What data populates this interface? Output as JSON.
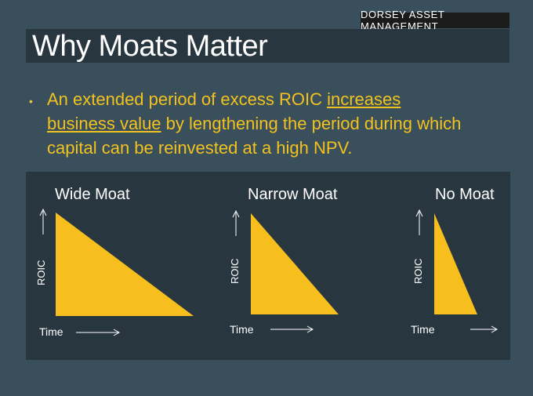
{
  "brand": "DORSEY ASSET MANAGEMENT",
  "title": "Why Moats Matter",
  "bullet": {
    "symbol": "•",
    "part1": "An extended period of excess ROIC ",
    "underlined": "increases business value",
    "part2": " by lengthening the period during which capital can be reinvested at a high NPV."
  },
  "colors": {
    "background": "#3a4f5c",
    "panel": "#28363f",
    "triangle": "#f7bf1e",
    "bullet_text": "#f2c21e"
  },
  "moats": [
    {
      "title": "Wide Moat",
      "y_label": "ROIC",
      "x_label": "Time"
    },
    {
      "title": "Narrow Moat",
      "y_label": "ROIC",
      "x_label": "Time"
    },
    {
      "title": "No Moat",
      "y_label": "ROIC",
      "x_label": "Time"
    }
  ]
}
